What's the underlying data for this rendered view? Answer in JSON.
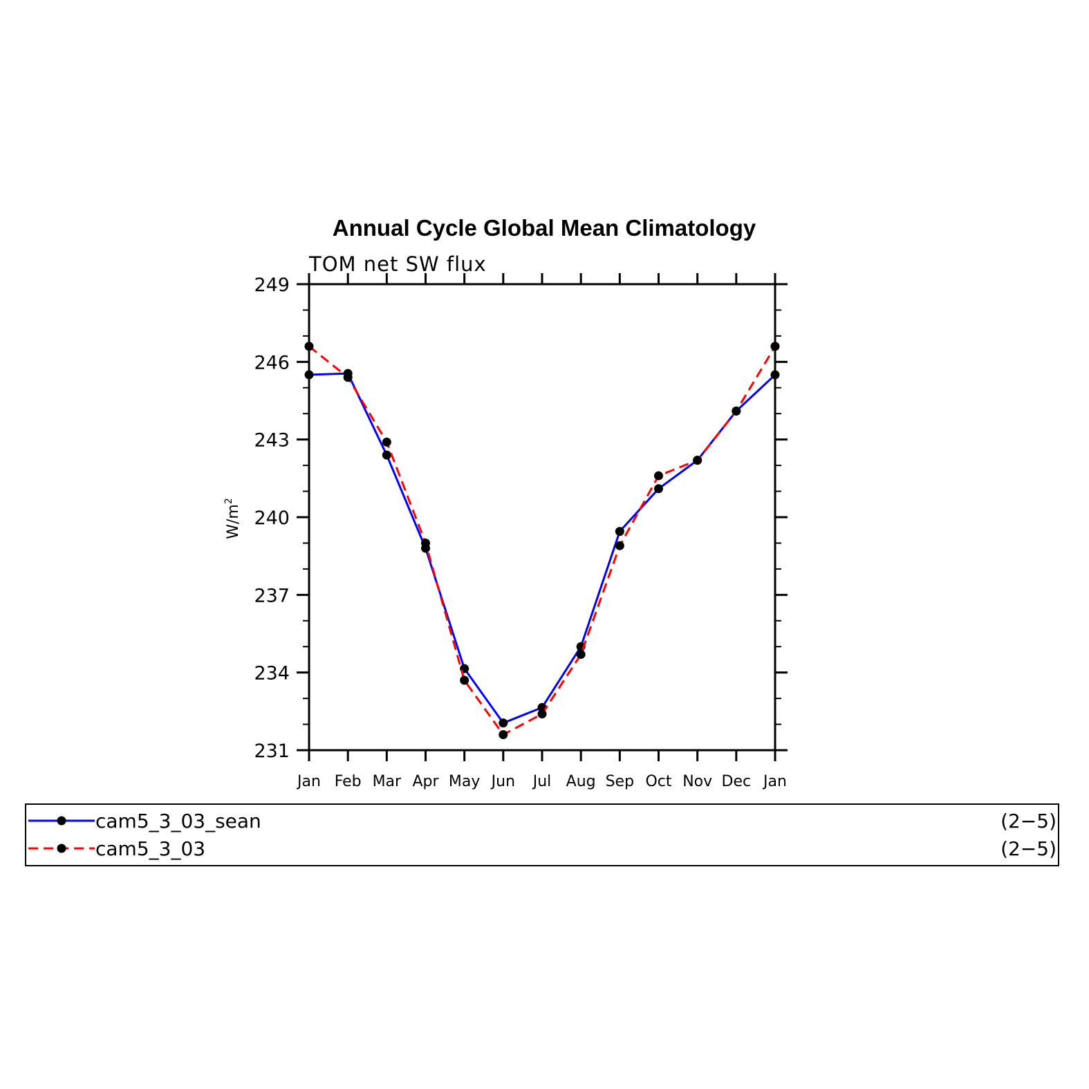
{
  "chart_data": {
    "type": "line",
    "title": "Annual Cycle Global Mean Climatology",
    "subtitle": "TOM net SW flux",
    "ylabel_main": "W/m",
    "ylabel_sup": "2",
    "xlabel": "",
    "categories": [
      "Jan",
      "Feb",
      "Mar",
      "Apr",
      "May",
      "Jun",
      "Jul",
      "Aug",
      "Sep",
      "Oct",
      "Nov",
      "Dec",
      "Jan"
    ],
    "ylim": [
      231,
      249
    ],
    "yticks": [
      231,
      234,
      237,
      240,
      243,
      246,
      249
    ],
    "series": [
      {
        "name": "cam5_3_03_sean",
        "range_label": "(2−5)",
        "color": "#0000ff",
        "dash": "solid",
        "values": [
          245.5,
          245.55,
          242.4,
          238.8,
          234.15,
          232.05,
          232.65,
          235.0,
          239.45,
          241.1,
          242.2,
          244.1,
          245.5
        ]
      },
      {
        "name": "cam5_3_03",
        "range_label": "(2−5)",
        "color": "#ff0000",
        "dash": "dashed",
        "values": [
          246.6,
          245.4,
          242.9,
          239.0,
          233.7,
          231.6,
          232.4,
          234.7,
          238.9,
          241.6,
          242.2,
          244.1,
          246.6
        ]
      }
    ],
    "grid": false,
    "legend_position": "bottom"
  }
}
